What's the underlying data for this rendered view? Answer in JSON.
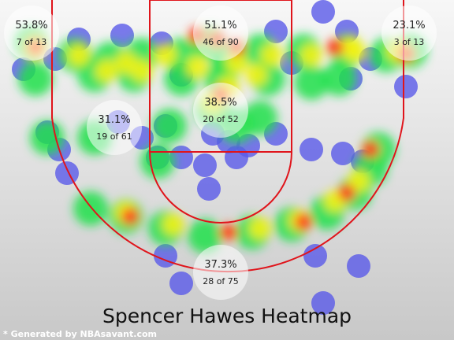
{
  "chart_data": {
    "type": "heatmap",
    "title": "Spencer Hawes Heatmap",
    "footer": "* Generated by NBAsavant.com",
    "colors": {
      "court_line": "#e0141b",
      "cold": "#5a5ae8",
      "warm": "#ff3b1f"
    },
    "zones": [
      {
        "id": "left-corner-3",
        "pct": "53.8%",
        "made": "7 of 13"
      },
      {
        "id": "paint",
        "pct": "51.1%",
        "made": "46 of 90"
      },
      {
        "id": "right-corner-3",
        "pct": "23.1%",
        "made": "3 of 13"
      },
      {
        "id": "left-midrange",
        "pct": "31.1%",
        "made": "19 of 61"
      },
      {
        "id": "mid-range-center",
        "pct": "38.5%",
        "made": "20 of 52"
      },
      {
        "id": "top-of-key-3",
        "pct": "37.3%",
        "made": "28 of 75"
      }
    ]
  }
}
